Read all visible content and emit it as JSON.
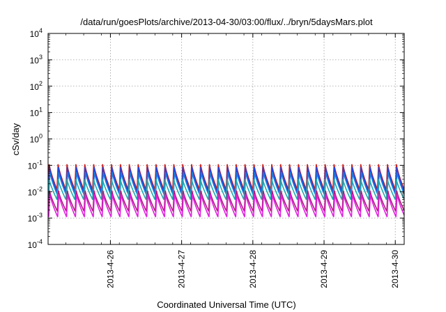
{
  "chart_data": {
    "type": "line",
    "title": "/data/run/goesPlots/archive/2013-04-30/03:00/flux/../bryn/5daysMars.plot",
    "xlabel": "Coordinated Universal Time (UTC)",
    "ylabel": "cSv/day",
    "yscale": "log",
    "ylim": [
      0.0001,
      10000
    ],
    "y_ticks": [
      {
        "value": 0.0001,
        "base": "10",
        "exp": "-4"
      },
      {
        "value": 0.001,
        "base": "10",
        "exp": "-3"
      },
      {
        "value": 0.01,
        "base": "10",
        "exp": "-2"
      },
      {
        "value": 0.1,
        "base": "10",
        "exp": "-1"
      },
      {
        "value": 1,
        "base": "10",
        "exp": "0"
      },
      {
        "value": 10,
        "base": "10",
        "exp": "1"
      },
      {
        "value": 100,
        "base": "10",
        "exp": "2"
      },
      {
        "value": 1000,
        "base": "10",
        "exp": "3"
      },
      {
        "value": 10000,
        "base": "10",
        "exp": "4"
      }
    ],
    "xlim": [
      "2013-04-25T03:00",
      "2013-04-30T03:00"
    ],
    "x_ticks": [
      "2013-4-26",
      "2013-4-27",
      "2013-4-28",
      "2013-4-29",
      "2013-4-30"
    ],
    "grid": true,
    "legend": "none",
    "oscillation_period_hours": 3,
    "series": [
      {
        "color": "#cc2222",
        "peak": 0.11,
        "trough": 0.012
      },
      {
        "color": "#2244dd",
        "peak": 0.085,
        "trough": 0.009
      },
      {
        "color": "#1a7ae0",
        "peak": 0.055,
        "trough": 0.007
      },
      {
        "color": "#20a8b0",
        "peak": 0.03,
        "trough": 0.005
      },
      {
        "color": "#b01a7a",
        "peak": 0.011,
        "trough": 0.0018
      },
      {
        "color": "#e020e0",
        "peak": 0.008,
        "trough": 0.0011
      }
    ]
  }
}
